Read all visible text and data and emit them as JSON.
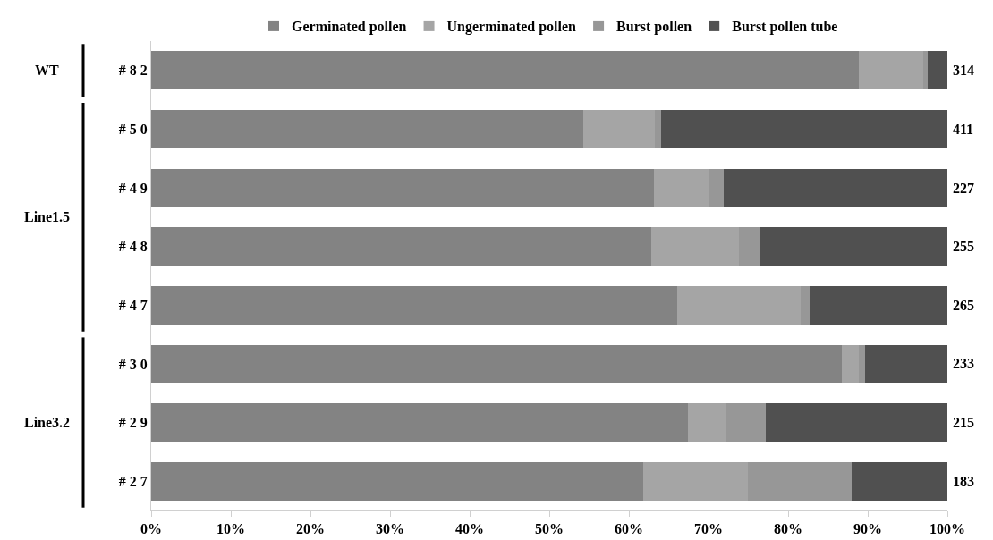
{
  "chart_data": {
    "type": "bar",
    "orientation": "horizontal",
    "stacked": true,
    "categories": [
      "# 8 2",
      "# 5 0",
      "# 4 9",
      "# 4 8",
      "# 4 7",
      "# 3 0",
      "# 2 9",
      "# 2 7"
    ],
    "series": [
      {
        "name": "Germinated pollen",
        "color": "#838383",
        "values": [
          88.9,
          54.3,
          63.1,
          62.8,
          66.1,
          86.7,
          67.4,
          61.8
        ]
      },
      {
        "name": "Ungerminated pollen",
        "color": "#a5a5a5",
        "values": [
          8.1,
          9.0,
          7.0,
          11.0,
          15.5,
          2.2,
          4.8,
          13.1
        ]
      },
      {
        "name": "Burst pollen",
        "color": "#979797",
        "values": [
          0.5,
          0.7,
          1.8,
          2.7,
          1.1,
          0.8,
          5.0,
          13.1
        ]
      },
      {
        "name": "Burst pollen tube",
        "color": "#505050",
        "values": [
          2.5,
          36.0,
          28.1,
          23.5,
          17.3,
          10.3,
          22.8,
          12.0
        ]
      }
    ],
    "xlim": [
      0,
      100
    ],
    "xticks": [
      {
        "value": 0,
        "label": "0%"
      },
      {
        "value": 10,
        "label": "10%"
      },
      {
        "value": 20,
        "label": "20%"
      },
      {
        "value": 30,
        "label": "30%"
      },
      {
        "value": 40,
        "label": "40%"
      },
      {
        "value": 50,
        "label": "50%"
      },
      {
        "value": 60,
        "label": "60%"
      },
      {
        "value": 70,
        "label": "70%"
      },
      {
        "value": 80,
        "label": "80%"
      },
      {
        "value": 90,
        "label": "90%"
      },
      {
        "value": 100,
        "label": "100%"
      }
    ],
    "grid": false,
    "legend": "top",
    "annotations": [
      "314",
      "411",
      "227",
      "255",
      "265",
      "233",
      "215",
      "183",
      "WT",
      "Line1.5",
      "Line3.2"
    ]
  }
}
